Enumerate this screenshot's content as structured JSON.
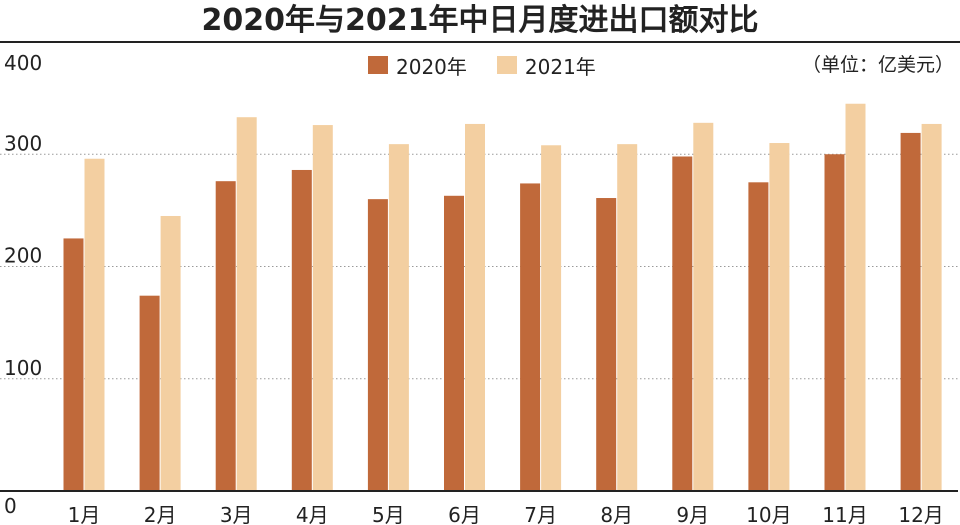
{
  "title": "2020年与2021年中日月度进出口额对比",
  "unit_note": "（单位：亿美元）",
  "colors": {
    "y2020": "#c0693a",
    "y2021": "#f3cfa1",
    "grid": "#9a9a9a",
    "axis": "#222222"
  },
  "chart_data": {
    "type": "bar",
    "title": "2020年与2021年中日月度进出口额对比",
    "xlabel": "",
    "ylabel": "",
    "ylim": [
      0,
      400
    ],
    "yticks": [
      "0",
      "100",
      "200",
      "300",
      "400"
    ],
    "grid": true,
    "legend_position": "top",
    "categories": [
      "1月",
      "2月",
      "3月",
      "4月",
      "5月",
      "6月",
      "7月",
      "8月",
      "9月",
      "10月",
      "11月",
      "12月"
    ],
    "series": [
      {
        "name": "2020年",
        "values": [
          225,
          174,
          276,
          286,
          260,
          263,
          274,
          261,
          298,
          275,
          300,
          319
        ]
      },
      {
        "name": "2021年",
        "values": [
          296,
          245,
          333,
          326,
          309,
          327,
          308,
          309,
          328,
          310,
          345,
          327
        ]
      }
    ]
  }
}
